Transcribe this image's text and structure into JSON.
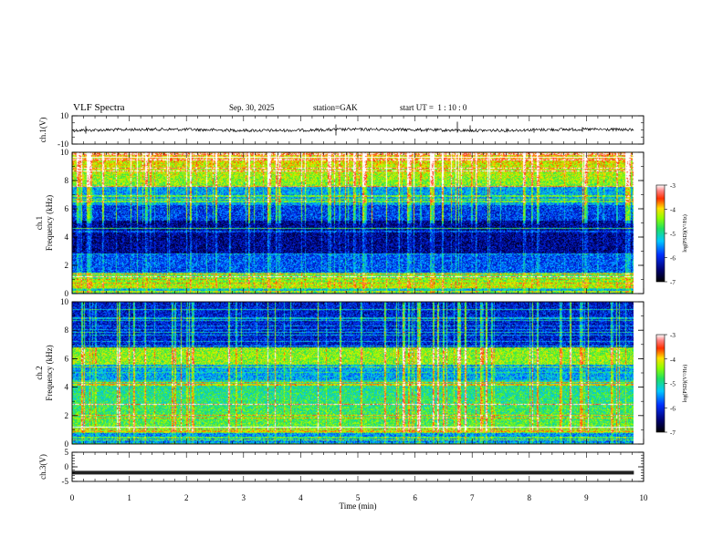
{
  "header": {
    "title": "VLF Spectra",
    "date": "Sep. 30, 2025",
    "station": "station=GAK",
    "start": "start UT =  1 : 10 : 0"
  },
  "chart_data": [
    {
      "type": "line",
      "panel": "ch1-waveform",
      "ylabel": "ch.1(V)",
      "ylim": [
        -10,
        10
      ],
      "yticks": [
        "10",
        "-10"
      ],
      "description_level": 0.0,
      "xlim": [
        0,
        9.83
      ]
    },
    {
      "type": "heatmap",
      "panel": "ch1-spectrogram",
      "ylabel_top": "ch.1",
      "ylabel": "Frequency (kHz)",
      "ylim": [
        0,
        10
      ],
      "yticks": [
        "0",
        "2",
        "4",
        "6",
        "8",
        "10"
      ],
      "xlim": [
        0,
        9.83
      ],
      "colorbar": {
        "label": "log(PSD)(V²/Hz)",
        "ticks": [
          "-3",
          "-4",
          "-5",
          "-6",
          "-7"
        ],
        "range": [
          -7,
          -3
        ]
      }
    },
    {
      "type": "heatmap",
      "panel": "ch2-spectrogram",
      "ylabel_top": "ch.2",
      "ylabel": "Frequency (kHz)",
      "ylim": [
        0,
        10
      ],
      "yticks": [
        "0",
        "2",
        "4",
        "6",
        "8",
        "10"
      ],
      "xlim": [
        0,
        9.83
      ],
      "colorbar": {
        "label": "log(PSD)(V²/Hz)",
        "ticks": [
          "-3",
          "-4",
          "-5",
          "-6",
          "-7"
        ],
        "range": [
          -7,
          -3
        ]
      }
    },
    {
      "type": "line",
      "panel": "ch3-waveform",
      "ylabel": "ch.3(V)",
      "ylim": [
        -5,
        5
      ],
      "yticks": [
        "5",
        "0",
        "-5"
      ],
      "level": -2.0,
      "xlim": [
        0,
        9.83
      ]
    }
  ],
  "xaxis": {
    "label": "Time (min)",
    "ticks": [
      "0",
      "1",
      "2",
      "3",
      "4",
      "5",
      "6",
      "7",
      "8",
      "9",
      "10"
    ],
    "range": [
      0,
      10
    ]
  }
}
